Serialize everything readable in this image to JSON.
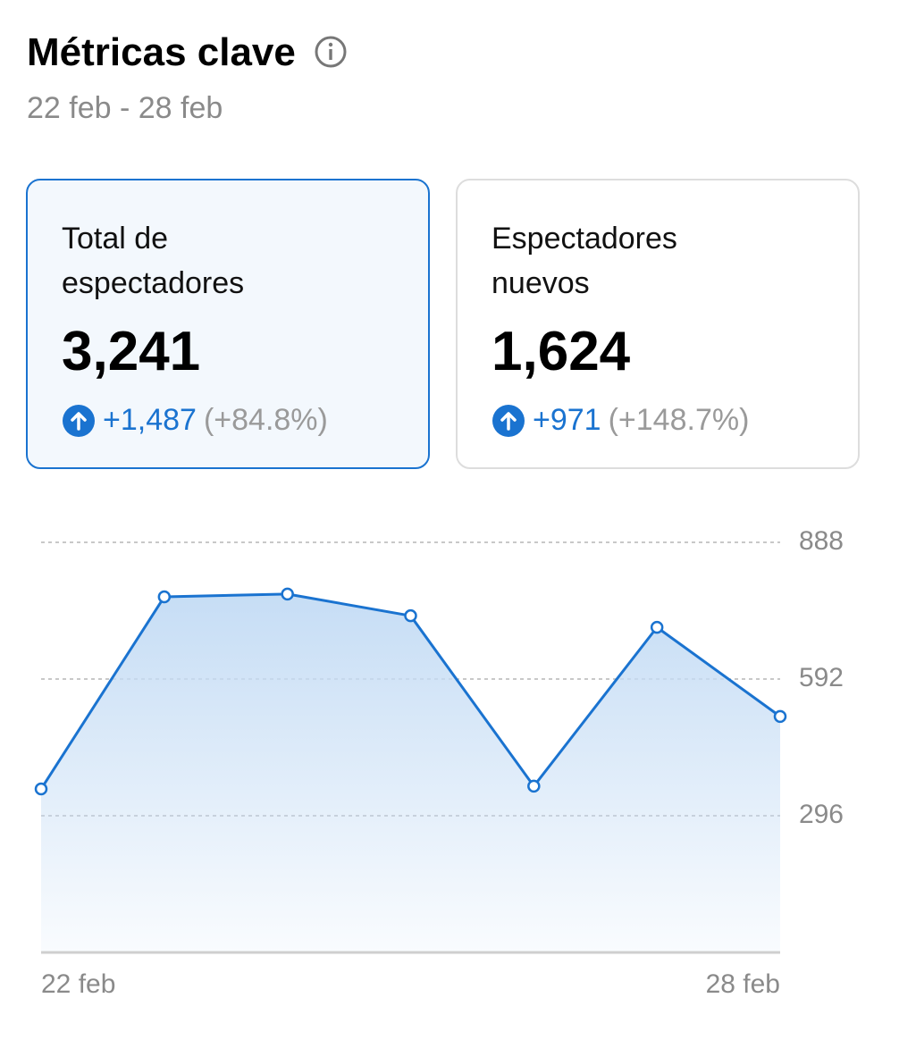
{
  "header": {
    "title": "Métricas clave",
    "subtitle": "22 feb - 28 feb"
  },
  "cards": [
    {
      "label_lines": [
        "Total de",
        "espectadores"
      ],
      "value": "3,241",
      "change": "+1,487",
      "change_pct": "(+84.8%)"
    },
    {
      "label_lines": [
        "Espectadores",
        "nuevos"
      ],
      "value": "1,624",
      "change": "+971",
      "change_pct": "(+148.7%)"
    }
  ],
  "chart_data": {
    "type": "area",
    "categories": [
      "22 feb",
      null,
      null,
      null,
      null,
      null,
      "28 feb"
    ],
    "values": [
      354,
      770,
      776,
      729,
      360,
      704,
      511
    ],
    "color": "#1a73d0",
    "ylim": [
      0,
      888
    ],
    "yticks": [
      296,
      592,
      888
    ],
    "grid": true
  }
}
